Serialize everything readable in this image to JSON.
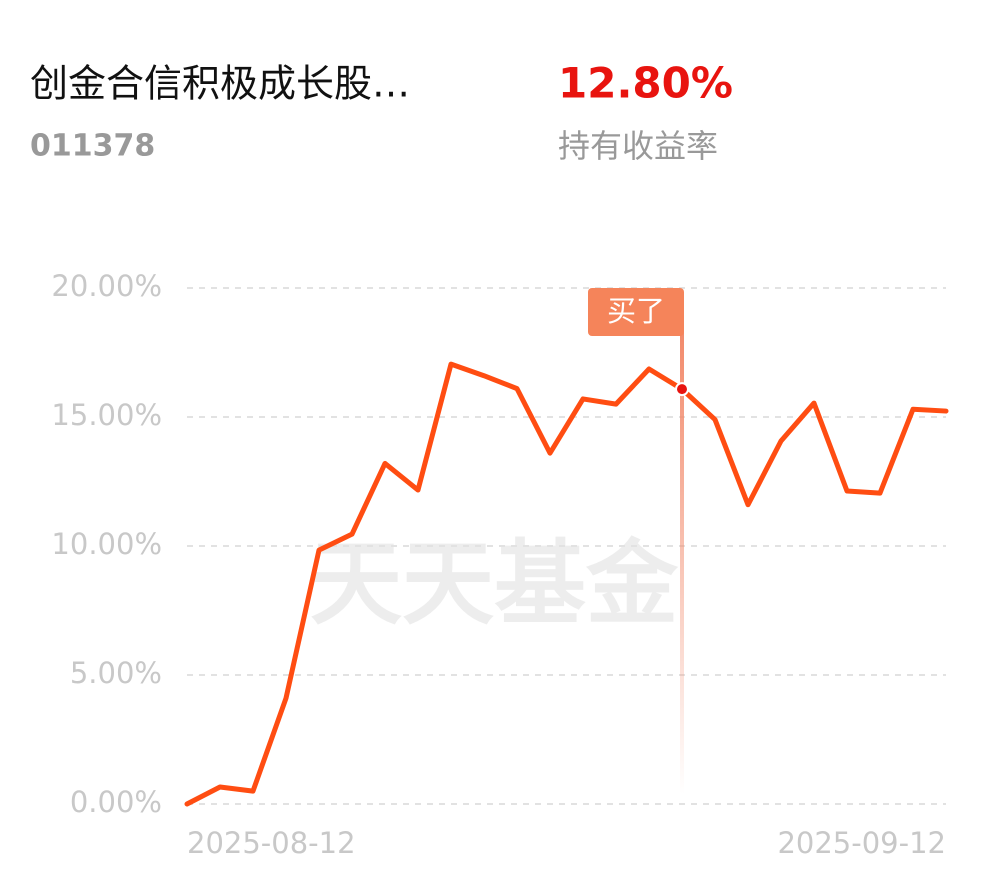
{
  "header": {
    "fund_name": "创金合信积极成长股…",
    "fund_code": "011378",
    "holding_return": "12.80%",
    "holding_return_label": "持有收益率"
  },
  "chart_data": {
    "type": "line",
    "watermark": "天天基金",
    "categories": [
      "2025-08-12",
      null,
      null,
      null,
      null,
      null,
      null,
      null,
      null,
      null,
      null,
      null,
      null,
      null,
      null,
      null,
      null,
      null,
      null,
      null,
      null,
      null,
      null,
      "2025-09-12"
    ],
    "series": [
      {
        "color": "#ff4d12",
        "values": [
          0,
          0.66,
          0.5,
          4.1,
          9.84,
          10.46,
          13.2,
          12.17,
          17.05,
          16.6,
          16.1,
          13.6,
          15.7,
          15.5,
          16.86,
          16.08,
          14.9,
          11.6,
          14.07,
          15.54,
          12.13,
          12.05,
          15.3,
          15.23
        ]
      }
    ],
    "ylim": [
      0,
      20
    ],
    "yticks": [
      {
        "value": 0,
        "label": "0.00%"
      },
      {
        "value": 5,
        "label": "5.00%"
      },
      {
        "value": 10,
        "label": "10.00%"
      },
      {
        "value": 15,
        "label": "15.00%"
      },
      {
        "value": 20,
        "label": "20.00%"
      }
    ],
    "grid": true,
    "annotations": [
      {
        "text": "买了",
        "at": 15
      }
    ]
  }
}
